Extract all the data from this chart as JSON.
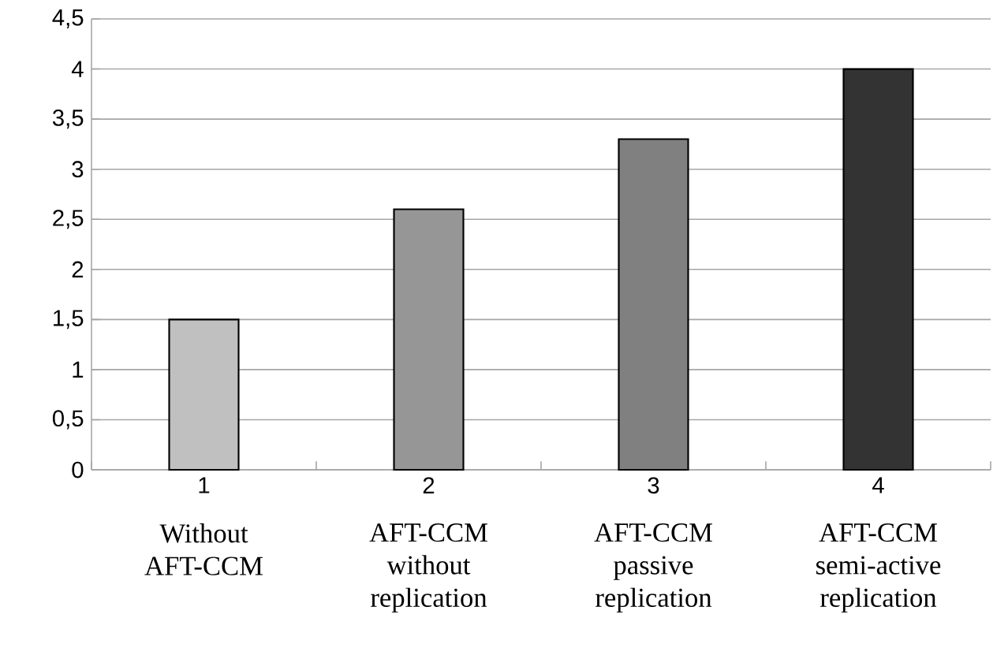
{
  "chart_data": {
    "type": "bar",
    "categories": [
      "1",
      "2",
      "3",
      "4"
    ],
    "values": [
      1.5,
      2.6,
      3.3,
      4.0
    ],
    "colors": [
      "#c0c0c0",
      "#969696",
      "#808080",
      "#333333"
    ],
    "ylim": [
      0,
      4.5
    ],
    "yticks": [
      0,
      {
        "value": 0.5,
        "label": "0,5"
      },
      1,
      {
        "value": 1.5,
        "label": "1,5"
      },
      2,
      {
        "value": 2.5,
        "label": "2,5"
      },
      3,
      {
        "value": 3.5,
        "label": "3,5"
      },
      4,
      {
        "value": 4.5,
        "label": "4,5"
      }
    ],
    "grid": "y",
    "annotations": [
      "Without AFT-CCM",
      "AFT-CCM without replication",
      "AFT-CCM passive replication",
      "AFT-CCM semi-active replication"
    ]
  }
}
